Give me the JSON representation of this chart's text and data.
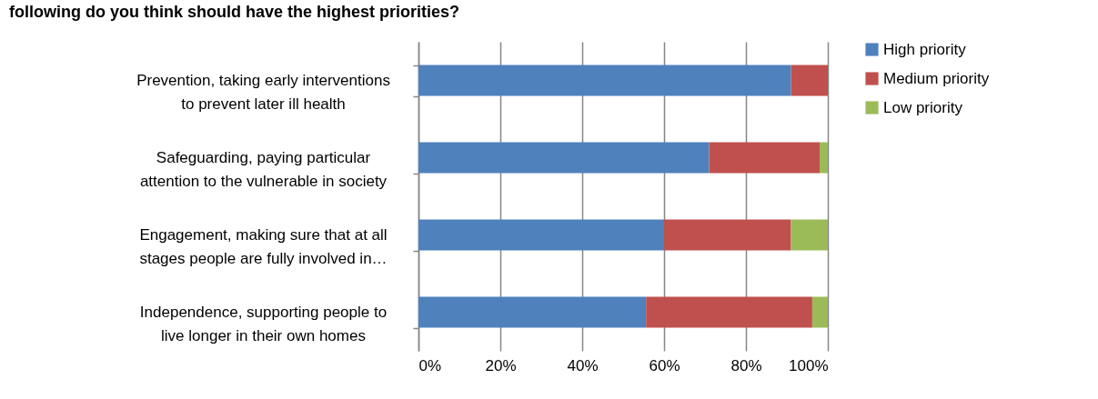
{
  "chart_data": {
    "type": "bar",
    "title": "following do you think should have the highest priorities?",
    "orientation": "horizontal",
    "stacked": true,
    "categories": [
      "Prevention, taking early interventions to prevent later ill health",
      "Safeguarding, paying particular attention to the vulnerable in society",
      "Engagement, making sure that at all stages people are fully involved in…",
      "Independence, supporting people to live longer in their own homes"
    ],
    "series": [
      {
        "name": "High priority",
        "color": "#4f81bd",
        "values": [
          91,
          71,
          60,
          55.6
        ]
      },
      {
        "name": "Medium priority",
        "color": "#c0504d",
        "values": [
          9,
          27,
          31,
          40.6
        ]
      },
      {
        "name": "Low priority",
        "color": "#9bbb59",
        "values": [
          0,
          2,
          9,
          3.8
        ]
      }
    ],
    "xlim": [
      0,
      100
    ],
    "xticks": [
      {
        "value": 0,
        "label": "0%"
      },
      {
        "value": 20,
        "label": "20%"
      },
      {
        "value": 40,
        "label": "40%"
      },
      {
        "value": 60,
        "label": "60%"
      },
      {
        "value": 80,
        "label": "80%"
      },
      {
        "value": 100,
        "label": "100%"
      }
    ],
    "grid": "x",
    "legend": "right"
  }
}
